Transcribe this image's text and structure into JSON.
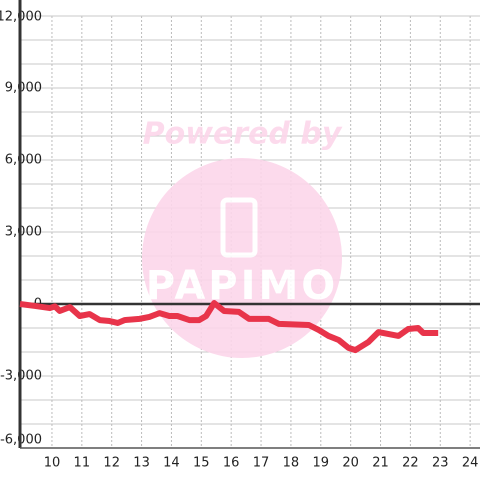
{
  "chart_data": {
    "type": "line",
    "watermark": {
      "text": "Powered by",
      "logo": "PAPIMO"
    },
    "x": [
      8.93,
      9.43,
      9.93,
      10.1,
      10.26,
      10.6,
      10.93,
      11.26,
      11.6,
      11.93,
      12.2,
      12.43,
      12.93,
      13.26,
      13.6,
      13.93,
      14.2,
      14.6,
      14.93,
      15.16,
      15.43,
      15.76,
      16.26,
      16.6,
      17.26,
      17.6,
      18.6,
      18.93,
      19.26,
      19.6,
      19.93,
      20.16,
      20.6,
      20.93,
      21.6,
      21.93,
      22.26,
      22.43,
      22.93
    ],
    "series": [
      {
        "color": "#e8344a",
        "values": [
          0,
          -80,
          -170,
          -100,
          -290,
          -130,
          -500,
          -420,
          -670,
          -710,
          -790,
          -670,
          -620,
          -540,
          -380,
          -500,
          -500,
          -670,
          -670,
          -500,
          40,
          -290,
          -330,
          -620,
          -620,
          -830,
          -875,
          -1080,
          -1330,
          -1500,
          -1830,
          -1920,
          -1580,
          -1170,
          -1330,
          -1040,
          -1000,
          -1210,
          -1210
        ]
      }
    ],
    "xlim": [
      8.93,
      24.33
    ],
    "xticks": [
      10,
      11,
      12,
      13,
      14,
      15,
      16,
      17,
      18,
      19,
      20,
      21,
      22,
      23,
      24
    ],
    "ylim": [
      -6000,
      12000
    ],
    "yticks": [
      {
        "value": -6000,
        "label": "-6,000"
      },
      {
        "value": -3000,
        "label": "-3,000"
      },
      0,
      {
        "value": 3000,
        "label": "3,000"
      },
      {
        "value": 6000,
        "label": "6,000"
      },
      {
        "value": 9000,
        "label": "9,000"
      },
      {
        "value": 12000,
        "label": "12,000"
      }
    ],
    "ygrid": [
      -5000,
      -4000,
      -2000,
      -1000,
      1000,
      2000,
      4000,
      5000,
      7000,
      8000,
      10000,
      11000
    ],
    "grid": true
  }
}
